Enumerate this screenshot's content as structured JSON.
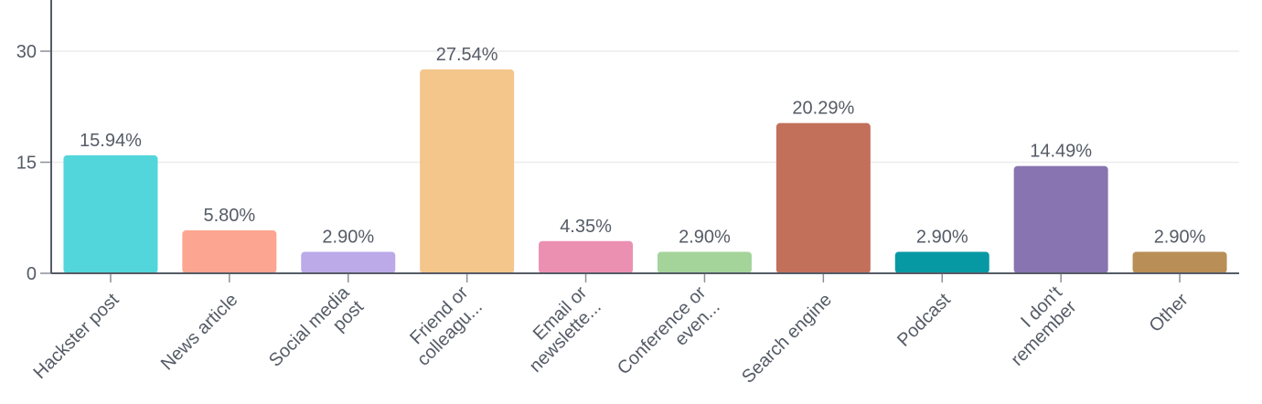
{
  "chart_data": {
    "type": "bar",
    "categories": [
      "Hackster post",
      "News article",
      "Social media post",
      "Friend or colleagu...",
      "Email or newslette...",
      "Conference or even...",
      "Search engine",
      "Podcast",
      "I don't remember",
      "Other"
    ],
    "category_lines": [
      [
        "Hackster post"
      ],
      [
        "News article"
      ],
      [
        "Social media",
        "post"
      ],
      [
        "Friend or",
        "colleagu..."
      ],
      [
        "Email or",
        "newslette..."
      ],
      [
        "Conference or",
        "even..."
      ],
      [
        "Search engine"
      ],
      [
        "Podcast"
      ],
      [
        "I don't",
        "remember"
      ],
      [
        "Other"
      ]
    ],
    "values": [
      15.94,
      5.8,
      2.9,
      27.54,
      4.35,
      2.9,
      20.29,
      2.9,
      14.49,
      2.9
    ],
    "value_labels": [
      "15.94%",
      "5.80%",
      "2.90%",
      "27.54%",
      "4.35%",
      "2.90%",
      "20.29%",
      "2.90%",
      "14.49%",
      "2.90%"
    ],
    "colors": [
      "#52d5db",
      "#fca590",
      "#bba9e8",
      "#f4c68b",
      "#eb90b1",
      "#a4d49a",
      "#c2705a",
      "#0799a3",
      "#8874b0",
      "#ba8e57"
    ],
    "ylim": [
      0,
      36
    ],
    "yticks": [
      0,
      15,
      30
    ],
    "ytick_labels": [
      "0",
      "15",
      "30"
    ],
    "grid": true,
    "title": "",
    "xlabel": "",
    "ylabel": ""
  }
}
